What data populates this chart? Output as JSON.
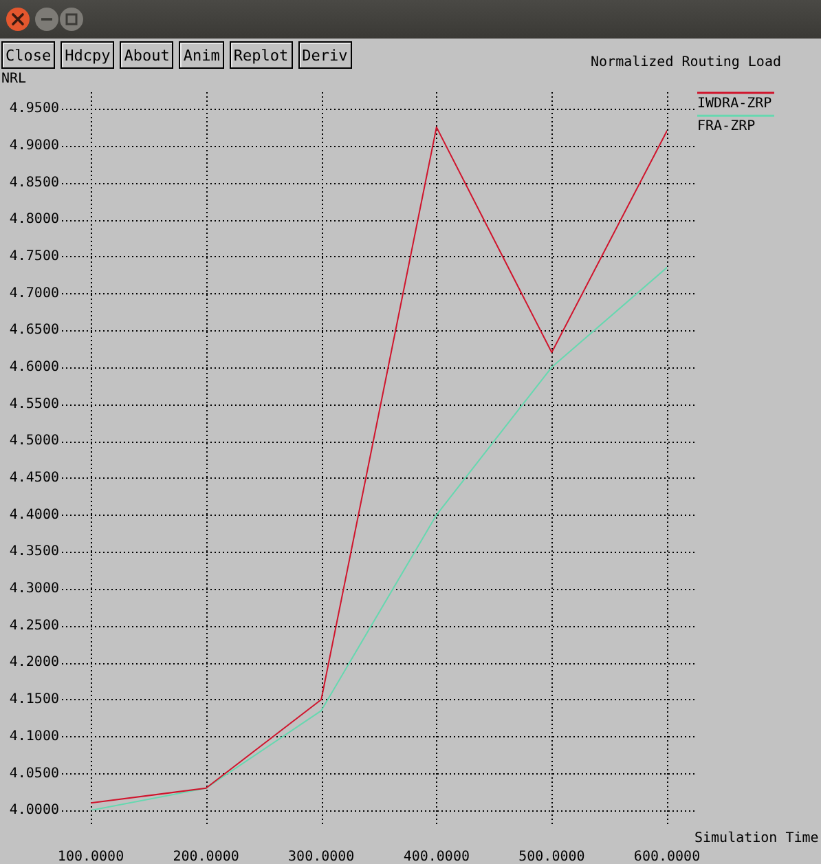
{
  "chart_data": {
    "type": "line",
    "title": "Normalized Routing Load",
    "xlabel": "Simulation Time",
    "ylabel": "NRL",
    "x": [
      100,
      200,
      300,
      400,
      500,
      600
    ],
    "series": [
      {
        "name": "IWDRA-ZRP",
        "color": "#d0142c",
        "values": [
          4.01,
          4.03,
          4.15,
          4.925,
          4.62,
          4.92
        ]
      },
      {
        "name": "FRA-ZRP",
        "color": "#66d8b0",
        "values": [
          4.0,
          4.03,
          4.135,
          4.4,
          4.6,
          4.735
        ]
      }
    ],
    "xlim": [
      100,
      600
    ],
    "xticks": [
      {
        "value": 100,
        "label": "100.0000"
      },
      {
        "value": 200,
        "label": "200.0000"
      },
      {
        "value": 300,
        "label": "300.0000"
      },
      {
        "value": 400,
        "label": "400.0000"
      },
      {
        "value": 500,
        "label": "500.0000"
      },
      {
        "value": 600,
        "label": "600.0000"
      }
    ],
    "ylim": [
      4.0,
      4.95
    ],
    "yticks": [
      {
        "value": 4.0,
        "label": "4.0000"
      },
      {
        "value": 4.05,
        "label": "4.0500"
      },
      {
        "value": 4.1,
        "label": "4.1000"
      },
      {
        "value": 4.15,
        "label": "4.1500"
      },
      {
        "value": 4.2,
        "label": "4.2000"
      },
      {
        "value": 4.25,
        "label": "4.2500"
      },
      {
        "value": 4.3,
        "label": "4.3000"
      },
      {
        "value": 4.35,
        "label": "4.3500"
      },
      {
        "value": 4.4,
        "label": "4.4000"
      },
      {
        "value": 4.45,
        "label": "4.4500"
      },
      {
        "value": 4.5,
        "label": "4.5000"
      },
      {
        "value": 4.55,
        "label": "4.5500"
      },
      {
        "value": 4.6,
        "label": "4.6000"
      },
      {
        "value": 4.65,
        "label": "4.6500"
      },
      {
        "value": 4.7,
        "label": "4.7000"
      },
      {
        "value": 4.75,
        "label": "4.7500"
      },
      {
        "value": 4.8,
        "label": "4.8000"
      },
      {
        "value": 4.85,
        "label": "4.8500"
      },
      {
        "value": 4.9,
        "label": "4.9000"
      },
      {
        "value": 4.95,
        "label": "4.9500"
      }
    ],
    "grid": true,
    "legend": "top right",
    "annotations": [
      "Close",
      "Hdcpy",
      "About",
      "Anim",
      "Replot",
      "Deriv"
    ]
  }
}
